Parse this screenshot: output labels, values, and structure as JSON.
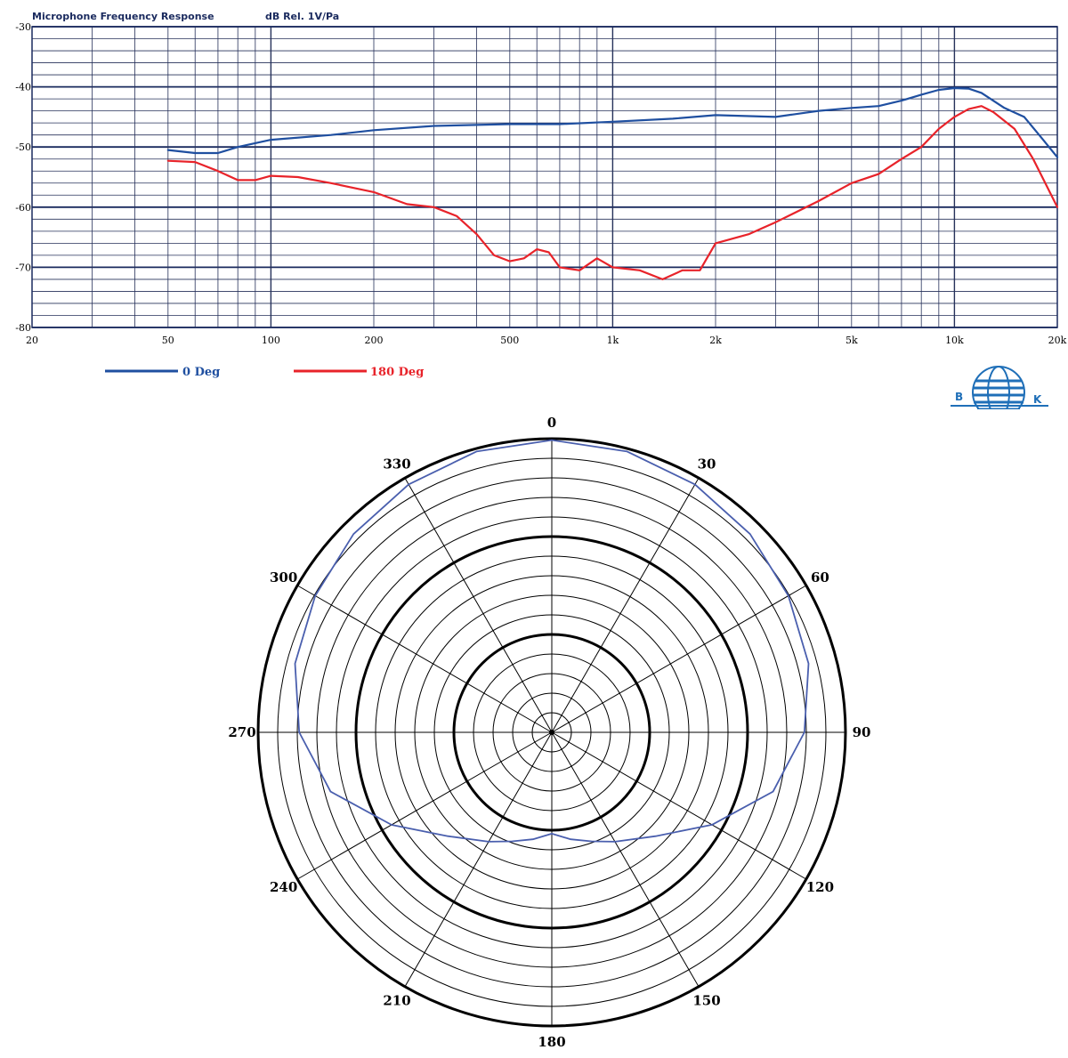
{
  "chart_data": [
    {
      "type": "line",
      "title": "Microphone Frequency Response",
      "subtitle": "dB Rel. 1V/Pa",
      "x_scale": "log",
      "xlim": [
        20,
        20000
      ],
      "ylim": [
        -80,
        -30
      ],
      "x_ticks": [
        {
          "value": 20,
          "label": "20"
        },
        {
          "value": 50,
          "label": "50"
        },
        {
          "value": 100,
          "label": "100"
        },
        {
          "value": 200,
          "label": "200"
        },
        {
          "value": 500,
          "label": "500"
        },
        {
          "value": 1000,
          "label": "1k"
        },
        {
          "value": 2000,
          "label": "2k"
        },
        {
          "value": 5000,
          "label": "5k"
        },
        {
          "value": 10000,
          "label": "10k"
        },
        {
          "value": 20000,
          "label": "20k"
        }
      ],
      "y_ticks": [
        {
          "value": -30,
          "label": "-30"
        },
        {
          "value": -40,
          "label": "-40"
        },
        {
          "value": -50,
          "label": "-50"
        },
        {
          "value": -60,
          "label": "-60"
        },
        {
          "value": -70,
          "label": "-70"
        },
        {
          "value": -80,
          "label": "-80"
        }
      ],
      "grid": true,
      "legend_position": "bottom-left",
      "series": [
        {
          "name": "0 Deg",
          "color": "#1f4fa0",
          "points": [
            [
              50,
              -50.5
            ],
            [
              60,
              -51
            ],
            [
              70,
              -51
            ],
            [
              80,
              -50
            ],
            [
              100,
              -48.8
            ],
            [
              150,
              -48
            ],
            [
              200,
              -47.2
            ],
            [
              300,
              -46.5
            ],
            [
              500,
              -46.2
            ],
            [
              700,
              -46.2
            ],
            [
              1000,
              -45.8
            ],
            [
              1500,
              -45.3
            ],
            [
              2000,
              -44.7
            ],
            [
              3000,
              -45
            ],
            [
              4000,
              -44
            ],
            [
              5000,
              -43.5
            ],
            [
              6000,
              -43.2
            ],
            [
              7000,
              -42.3
            ],
            [
              8000,
              -41.3
            ],
            [
              9000,
              -40.5
            ],
            [
              10000,
              -40.2
            ],
            [
              11000,
              -40.3
            ],
            [
              12000,
              -41
            ],
            [
              14000,
              -43.5
            ],
            [
              16000,
              -45
            ],
            [
              18000,
              -48.5
            ],
            [
              20000,
              -51.7
            ]
          ]
        },
        {
          "name": "180 Deg",
          "color": "#e8232a",
          "points": [
            [
              50,
              -52.3
            ],
            [
              60,
              -52.5
            ],
            [
              70,
              -54
            ],
            [
              80,
              -55.5
            ],
            [
              90,
              -55.5
            ],
            [
              100,
              -54.8
            ],
            [
              120,
              -55
            ],
            [
              150,
              -56
            ],
            [
              200,
              -57.5
            ],
            [
              250,
              -59.5
            ],
            [
              300,
              -60
            ],
            [
              350,
              -61.5
            ],
            [
              400,
              -64.5
            ],
            [
              450,
              -68
            ],
            [
              500,
              -69
            ],
            [
              550,
              -68.5
            ],
            [
              600,
              -67
            ],
            [
              650,
              -67.5
            ],
            [
              700,
              -70
            ],
            [
              800,
              -70.5
            ],
            [
              900,
              -68.5
            ],
            [
              1000,
              -70
            ],
            [
              1200,
              -70.5
            ],
            [
              1400,
              -72
            ],
            [
              1600,
              -70.5
            ],
            [
              1800,
              -70.5
            ],
            [
              2000,
              -66
            ],
            [
              2500,
              -64.5
            ],
            [
              3000,
              -62.5
            ],
            [
              4000,
              -59
            ],
            [
              5000,
              -56
            ],
            [
              6000,
              -54.5
            ],
            [
              7000,
              -52
            ],
            [
              8000,
              -50
            ],
            [
              9000,
              -47
            ],
            [
              10000,
              -45
            ],
            [
              11000,
              -43.7
            ],
            [
              12000,
              -43.2
            ],
            [
              13000,
              -44.2
            ],
            [
              15000,
              -47
            ],
            [
              17000,
              -52
            ],
            [
              20000,
              -60
            ]
          ]
        }
      ]
    },
    {
      "type": "polar",
      "angle_ticks": [
        {
          "value": 0,
          "label": "0"
        },
        {
          "value": 30,
          "label": "30"
        },
        {
          "value": 60,
          "label": "60"
        },
        {
          "value": 90,
          "label": "90"
        },
        {
          "value": 120,
          "label": "120"
        },
        {
          "value": 150,
          "label": "150"
        },
        {
          "value": 180,
          "label": "180"
        },
        {
          "value": 210,
          "label": "210"
        },
        {
          "value": 240,
          "label": "240"
        },
        {
          "value": 270,
          "label": "270"
        },
        {
          "value": 300,
          "label": "300"
        },
        {
          "value": 330,
          "label": "330"
        }
      ],
      "rings": 15,
      "bold_rings": [
        5,
        10,
        15
      ],
      "series": [
        {
          "color": "#4a5fae",
          "points": [
            [
              0,
              0.995
            ],
            [
              15,
              0.99
            ],
            [
              30,
              0.975
            ],
            [
              45,
              0.955
            ],
            [
              60,
              0.93
            ],
            [
              75,
              0.905
            ],
            [
              90,
              0.86
            ],
            [
              105,
              0.78
            ],
            [
              120,
              0.63
            ],
            [
              135,
              0.5
            ],
            [
              150,
              0.43
            ],
            [
              160,
              0.395
            ],
            [
              170,
              0.37
            ],
            [
              180,
              0.345
            ],
            [
              190,
              0.37
            ],
            [
              200,
              0.395
            ],
            [
              210,
              0.43
            ],
            [
              225,
              0.5
            ],
            [
              240,
              0.63
            ],
            [
              255,
              0.78
            ],
            [
              270,
              0.86
            ],
            [
              285,
              0.905
            ],
            [
              300,
              0.93
            ],
            [
              315,
              0.955
            ],
            [
              330,
              0.975
            ],
            [
              345,
              0.99
            ],
            [
              360,
              0.995
            ]
          ]
        }
      ]
    }
  ],
  "legend": [
    {
      "label": "0 Deg",
      "color": "#1f4fa0"
    },
    {
      "label": "180 Deg",
      "color": "#e8232a"
    }
  ],
  "logo": {
    "left_letter": "B",
    "right_letter": "K"
  }
}
